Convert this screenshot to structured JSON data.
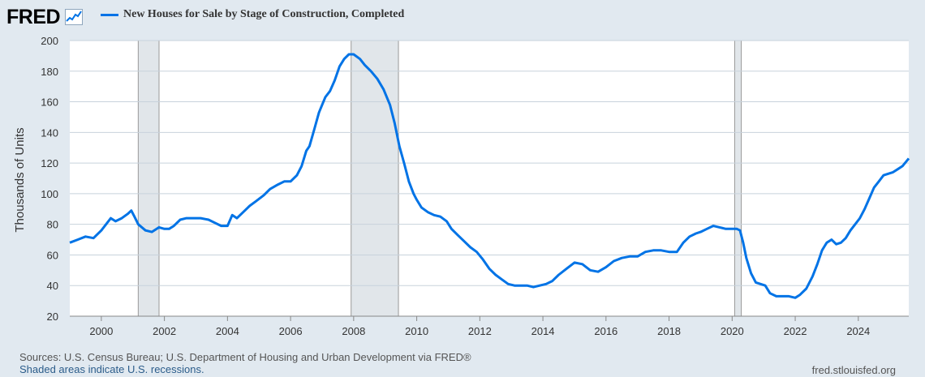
{
  "header": {
    "logo_text": "FRED",
    "logo_icon": "fred-line-chart-icon"
  },
  "legend": {
    "label": "New Houses for Sale by Stage of Construction, Completed",
    "color": "#0073e6"
  },
  "chart_data": {
    "type": "line",
    "title": "New Houses for Sale by Stage of Construction, Completed",
    "ylabel": "Thousands of Units",
    "xlabel": "",
    "xlim": [
      1999.0,
      2025.6
    ],
    "ylim": [
      20,
      200
    ],
    "yticks": [
      20,
      40,
      60,
      80,
      100,
      120,
      140,
      160,
      180,
      200
    ],
    "xticks": [
      2000,
      2002,
      2004,
      2006,
      2008,
      2010,
      2012,
      2014,
      2016,
      2018,
      2020,
      2022,
      2024
    ],
    "grid": true,
    "recessions": [
      [
        2001.17,
        2001.83
      ],
      [
        2007.92,
        2009.42
      ],
      [
        2020.08,
        2020.29
      ]
    ],
    "series": [
      {
        "name": "New Houses for Sale by Stage of Construction, Completed",
        "color": "#0073e6",
        "points": [
          [
            1999.0,
            68
          ],
          [
            1999.25,
            70
          ],
          [
            1999.5,
            72
          ],
          [
            1999.75,
            71
          ],
          [
            2000.0,
            76
          ],
          [
            2000.15,
            80
          ],
          [
            2000.3,
            84
          ],
          [
            2000.45,
            82
          ],
          [
            2000.65,
            84
          ],
          [
            2000.85,
            87
          ],
          [
            2000.95,
            89
          ],
          [
            2001.05,
            85
          ],
          [
            2001.17,
            80
          ],
          [
            2001.4,
            76
          ],
          [
            2001.6,
            75
          ],
          [
            2001.83,
            78
          ],
          [
            2002.0,
            77
          ],
          [
            2002.15,
            77
          ],
          [
            2002.3,
            79
          ],
          [
            2002.5,
            83
          ],
          [
            2002.7,
            84
          ],
          [
            2002.9,
            84
          ],
          [
            2003.15,
            84
          ],
          [
            2003.4,
            83
          ],
          [
            2003.6,
            81
          ],
          [
            2003.8,
            79
          ],
          [
            2004.0,
            79
          ],
          [
            2004.15,
            86
          ],
          [
            2004.3,
            84
          ],
          [
            2004.5,
            88
          ],
          [
            2004.7,
            92
          ],
          [
            2004.9,
            95
          ],
          [
            2005.15,
            99
          ],
          [
            2005.35,
            103
          ],
          [
            2005.6,
            106
          ],
          [
            2005.8,
            108
          ],
          [
            2006.0,
            108
          ],
          [
            2006.2,
            112
          ],
          [
            2006.35,
            118
          ],
          [
            2006.5,
            128
          ],
          [
            2006.6,
            131
          ],
          [
            2006.75,
            142
          ],
          [
            2006.9,
            153
          ],
          [
            2007.1,
            163
          ],
          [
            2007.25,
            167
          ],
          [
            2007.4,
            174
          ],
          [
            2007.55,
            183
          ],
          [
            2007.7,
            188
          ],
          [
            2007.85,
            191
          ],
          [
            2008.0,
            191
          ],
          [
            2008.2,
            188
          ],
          [
            2008.35,
            184
          ],
          [
            2008.55,
            180
          ],
          [
            2008.75,
            175
          ],
          [
            2008.95,
            168
          ],
          [
            2009.15,
            158
          ],
          [
            2009.3,
            146
          ],
          [
            2009.45,
            131
          ],
          [
            2009.6,
            120
          ],
          [
            2009.75,
            108
          ],
          [
            2009.9,
            100
          ],
          [
            2010.0,
            96
          ],
          [
            2010.15,
            91
          ],
          [
            2010.35,
            88
          ],
          [
            2010.55,
            86
          ],
          [
            2010.75,
            85
          ],
          [
            2010.95,
            82
          ],
          [
            2011.1,
            77
          ],
          [
            2011.3,
            73
          ],
          [
            2011.5,
            69
          ],
          [
            2011.7,
            65
          ],
          [
            2011.9,
            62
          ],
          [
            2012.1,
            57
          ],
          [
            2012.3,
            51
          ],
          [
            2012.5,
            47
          ],
          [
            2012.7,
            44
          ],
          [
            2012.9,
            41
          ],
          [
            2013.1,
            40
          ],
          [
            2013.3,
            40
          ],
          [
            2013.5,
            40
          ],
          [
            2013.7,
            39
          ],
          [
            2013.9,
            40
          ],
          [
            2014.1,
            41
          ],
          [
            2014.3,
            43
          ],
          [
            2014.5,
            47
          ],
          [
            2014.75,
            51
          ],
          [
            2015.0,
            55
          ],
          [
            2015.25,
            54
          ],
          [
            2015.5,
            50
          ],
          [
            2015.75,
            49
          ],
          [
            2016.0,
            52
          ],
          [
            2016.25,
            56
          ],
          [
            2016.5,
            58
          ],
          [
            2016.75,
            59
          ],
          [
            2017.0,
            59
          ],
          [
            2017.25,
            62
          ],
          [
            2017.5,
            63
          ],
          [
            2017.75,
            63
          ],
          [
            2018.0,
            62
          ],
          [
            2018.25,
            62
          ],
          [
            2018.45,
            68
          ],
          [
            2018.65,
            72
          ],
          [
            2018.85,
            74
          ],
          [
            2019.0,
            75
          ],
          [
            2019.2,
            77
          ],
          [
            2019.4,
            79
          ],
          [
            2019.6,
            78
          ],
          [
            2019.8,
            77
          ],
          [
            2020.0,
            77
          ],
          [
            2020.15,
            77
          ],
          [
            2020.25,
            76
          ],
          [
            2020.35,
            68
          ],
          [
            2020.45,
            58
          ],
          [
            2020.6,
            48
          ],
          [
            2020.75,
            42
          ],
          [
            2020.9,
            41
          ],
          [
            2021.05,
            40
          ],
          [
            2021.2,
            35
          ],
          [
            2021.4,
            33
          ],
          [
            2021.6,
            33
          ],
          [
            2021.8,
            33
          ],
          [
            2022.0,
            32
          ],
          [
            2022.15,
            34
          ],
          [
            2022.35,
            38
          ],
          [
            2022.55,
            46
          ],
          [
            2022.7,
            54
          ],
          [
            2022.85,
            63
          ],
          [
            2023.0,
            68
          ],
          [
            2023.15,
            70
          ],
          [
            2023.3,
            67
          ],
          [
            2023.45,
            68
          ],
          [
            2023.6,
            71
          ],
          [
            2023.75,
            76
          ],
          [
            2023.9,
            80
          ],
          [
            2024.05,
            84
          ],
          [
            2024.2,
            90
          ],
          [
            2024.35,
            97
          ],
          [
            2024.5,
            104
          ],
          [
            2024.65,
            108
          ],
          [
            2024.8,
            112
          ],
          [
            2024.95,
            113
          ],
          [
            2025.1,
            114
          ],
          [
            2025.25,
            116
          ],
          [
            2025.4,
            118
          ],
          [
            2025.6,
            123
          ]
        ]
      }
    ]
  },
  "footer": {
    "sources": "Sources: U.S. Census Bureau; U.S. Department of Housing and Urban Development via FRED®",
    "recession_note": "Shaded areas indicate U.S. recessions.",
    "site": "fred.stlouisfed.org"
  }
}
